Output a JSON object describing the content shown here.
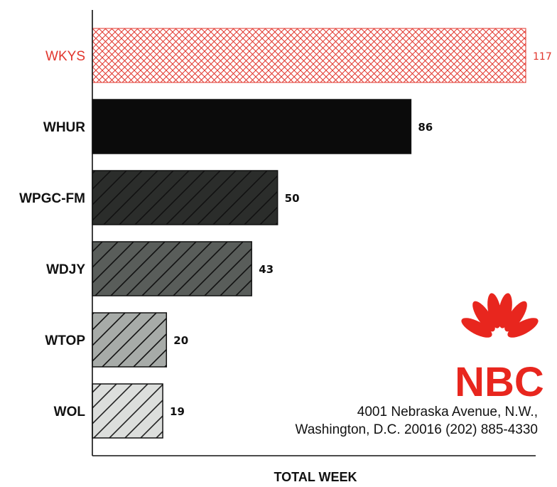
{
  "chart_data": {
    "type": "bar",
    "orientation": "horizontal",
    "categories": [
      "WKYS",
      "WHUR",
      "WPGC-FM",
      "WDJY",
      "WTOP",
      "WOL"
    ],
    "values": [
      117,
      86,
      50,
      43,
      20,
      19
    ],
    "value_labels": [
      "117",
      "86",
      "50",
      "43",
      "20",
      "19"
    ],
    "xlabel": "TOTAL WEEK",
    "xlim": [
      0,
      120
    ],
    "grid": false,
    "highlight": {
      "category": "WKYS",
      "color": "#e1352c"
    },
    "bar_styles": [
      {
        "fill": "crosshatch",
        "color": "#e1352c"
      },
      {
        "fill": "solid",
        "color": "#0b0b0b"
      },
      {
        "fill": "hatch",
        "color": "#2b2d2b"
      },
      {
        "fill": "hatch",
        "color": "#595d5a"
      },
      {
        "fill": "hatch",
        "color": "#a7aba8"
      },
      {
        "fill": "hatch",
        "color": "#dcdedc"
      }
    ]
  },
  "logo": {
    "text": "NBC",
    "icon": "peacock-icon",
    "color": "#e8261e"
  },
  "address": {
    "line1": "4001 Nebraska Avenue, N.W.,",
    "line2": "Washington, D.C. 20016  (202) 885-4330"
  }
}
